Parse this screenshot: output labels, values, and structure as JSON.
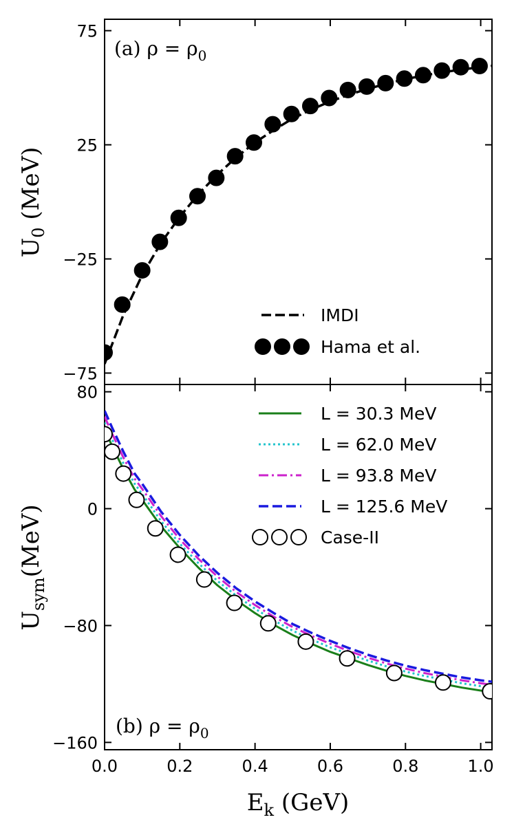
{
  "chart_data": [
    {
      "type": "line",
      "panel": "a",
      "annotation": {
        "prefix": "(a) ρ = ρ",
        "sub": "0"
      },
      "ylabel": {
        "main": "U",
        "sub": "0",
        "rest": " (MeV)"
      },
      "xlim": [
        0.0,
        1.03
      ],
      "ylim": [
        -80,
        80
      ],
      "yticks": [
        75,
        25,
        -25,
        -75
      ],
      "yticklabels": [
        "75",
        "25",
        "−25",
        "−75"
      ],
      "grid": false,
      "legend_position": "lower-right",
      "series": [
        {
          "name": "IMDI",
          "style": "dashed",
          "color": "#000000",
          "x": [
            0.0,
            0.05,
            0.1,
            0.15,
            0.2,
            0.25,
            0.3,
            0.35,
            0.4,
            0.45,
            0.5,
            0.55,
            0.6,
            0.65,
            0.7,
            0.75,
            0.8,
            0.85,
            0.9,
            0.95,
            1.0,
            1.03
          ],
          "y": [
            -71,
            -49.5,
            -32,
            -18,
            -6.5,
            3.5,
            12,
            19.5,
            26,
            31.5,
            36.5,
            40.5,
            44,
            47,
            49.5,
            51.8,
            53.8,
            55.4,
            56.8,
            58,
            59,
            59.6
          ]
        },
        {
          "name": "Hama et al.",
          "style": "markers-filled",
          "color": "#000000",
          "x": [
            0.0,
            0.047,
            0.1,
            0.147,
            0.197,
            0.247,
            0.297,
            0.347,
            0.397,
            0.447,
            0.497,
            0.547,
            0.597,
            0.647,
            0.697,
            0.747,
            0.797,
            0.847,
            0.897,
            0.947,
            0.997
          ],
          "y": [
            -66,
            -45,
            -30,
            -17.5,
            -7,
            2.5,
            10.5,
            20,
            26,
            34,
            38.5,
            42,
            45.5,
            49,
            50.5,
            52,
            54,
            55.5,
            57.5,
            59,
            59.5
          ]
        }
      ]
    },
    {
      "type": "line",
      "panel": "b",
      "annotation": {
        "prefix": "(b) ρ = ρ",
        "sub": "0"
      },
      "ylabel": {
        "main": "U",
        "sub": "sym",
        "rest": "(MeV)"
      },
      "xlabel": {
        "main": "E",
        "sub": "k",
        "rest": " (GeV)"
      },
      "xlim": [
        0.0,
        1.03
      ],
      "ylim": [
        -165,
        85
      ],
      "xticks": [
        0.0,
        0.2,
        0.4,
        0.6,
        0.8,
        1.0
      ],
      "xticklabels": [
        "0.0",
        "0.2",
        "0.4",
        "0.6",
        "0.8",
        "1.0"
      ],
      "yticks": [
        80,
        0,
        -80,
        -160
      ],
      "yticklabels": [
        "80",
        "0",
        "−80",
        "−160"
      ],
      "grid": false,
      "legend_position": "upper-right",
      "series": [
        {
          "name": "L = 30.3 MeV",
          "style": "solid",
          "color": "#1a7f1a",
          "x": [
            0.0,
            0.02,
            0.05,
            0.08,
            0.1,
            0.15,
            0.2,
            0.25,
            0.3,
            0.35,
            0.4,
            0.45,
            0.5,
            0.55,
            0.6,
            0.65,
            0.7,
            0.75,
            0.8,
            0.85,
            0.9,
            0.95,
            1.0,
            1.03
          ],
          "y": [
            54,
            43,
            27,
            13,
            6,
            -12,
            -27,
            -40.5,
            -52.5,
            -62.5,
            -71.5,
            -79.5,
            -86.5,
            -92.5,
            -98,
            -102.5,
            -107,
            -111,
            -114.5,
            -117.5,
            -120,
            -122.5,
            -124.5,
            -125.5
          ]
        },
        {
          "name": "L = 62.0 MeV",
          "style": "dotted",
          "color": "#22c4cc",
          "x": [
            0.0,
            0.02,
            0.05,
            0.08,
            0.1,
            0.15,
            0.2,
            0.25,
            0.3,
            0.35,
            0.4,
            0.45,
            0.5,
            0.55,
            0.6,
            0.65,
            0.7,
            0.75,
            0.8,
            0.85,
            0.9,
            0.95,
            1.0,
            1.03
          ],
          "y": [
            59,
            47.5,
            31,
            17,
            10,
            -8.5,
            -24,
            -37.5,
            -49.5,
            -59.5,
            -68.5,
            -76.5,
            -83.5,
            -89.5,
            -95,
            -99.5,
            -104,
            -108,
            -111.5,
            -114.5,
            -117,
            -119.5,
            -121.5,
            -122.5
          ]
        },
        {
          "name": "L = 93.8 MeV",
          "style": "dashdot",
          "color": "#cc22cc",
          "x": [
            0.0,
            0.02,
            0.05,
            0.08,
            0.1,
            0.15,
            0.2,
            0.25,
            0.3,
            0.35,
            0.4,
            0.45,
            0.5,
            0.55,
            0.6,
            0.65,
            0.7,
            0.75,
            0.8,
            0.85,
            0.9,
            0.95,
            1.0,
            1.03
          ],
          "y": [
            63,
            51.5,
            35,
            20.5,
            13.5,
            -5,
            -21,
            -34.5,
            -46.5,
            -57,
            -66,
            -74,
            -81,
            -87,
            -92.5,
            -97.5,
            -102,
            -106,
            -109.5,
            -112.5,
            -115,
            -117.5,
            -119.5,
            -120.5
          ]
        },
        {
          "name": "L = 125.6 MeV",
          "style": "dashed",
          "color": "#1a1adf",
          "x": [
            0.0,
            0.02,
            0.05,
            0.08,
            0.1,
            0.15,
            0.2,
            0.25,
            0.3,
            0.35,
            0.4,
            0.45,
            0.5,
            0.55,
            0.6,
            0.65,
            0.7,
            0.75,
            0.8,
            0.85,
            0.9,
            0.95,
            1.0,
            1.03
          ],
          "y": [
            67,
            55.5,
            39,
            24,
            17,
            -2,
            -18,
            -32,
            -44,
            -54.5,
            -63.5,
            -71.5,
            -79,
            -85,
            -90.5,
            -95.5,
            -100,
            -104,
            -107.5,
            -110.5,
            -113,
            -115.5,
            -117.5,
            -118.5
          ]
        },
        {
          "name": "Case-II",
          "style": "markers-open",
          "color": "#000000",
          "x": [
            0.0,
            0.02,
            0.05,
            0.085,
            0.135,
            0.195,
            0.265,
            0.345,
            0.435,
            0.535,
            0.645,
            0.77,
            0.9,
            1.025
          ],
          "y": [
            51,
            39,
            24,
            6,
            -13.5,
            -31.5,
            -48.5,
            -64.5,
            -78.5,
            -91,
            -102.5,
            -112.5,
            -119,
            -125
          ]
        }
      ]
    }
  ]
}
